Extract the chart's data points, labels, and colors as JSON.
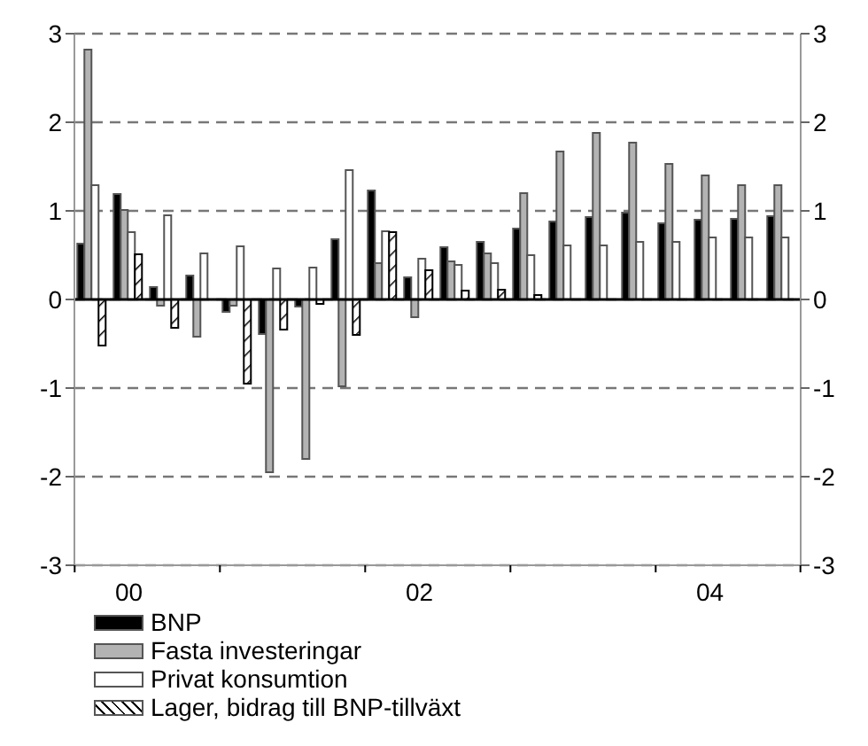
{
  "chart_data": {
    "type": "bar",
    "categories": [
      null,
      "00",
      null,
      null,
      null,
      null,
      null,
      null,
      null,
      "02",
      null,
      null,
      null,
      null,
      null,
      null,
      null,
      "04",
      null,
      null
    ],
    "series": [
      {
        "name": "BNP",
        "color": "#000000",
        "values": [
          0.63,
          1.19,
          0.14,
          0.27,
          -0.14,
          -0.39,
          -0.08,
          0.68,
          1.23,
          0.25,
          0.59,
          0.65,
          0.8,
          0.88,
          0.93,
          0.98,
          0.86,
          0.9,
          0.91,
          0.94
        ]
      },
      {
        "name": "Fasta investeringar",
        "color": "#b3b3b3",
        "values": [
          2.82,
          1.01,
          -0.07,
          -0.42,
          -0.07,
          -1.95,
          -1.8,
          -0.98,
          0.41,
          -0.2,
          0.43,
          0.52,
          1.2,
          1.67,
          1.88,
          1.77,
          1.53,
          1.4,
          1.29,
          1.29
        ]
      },
      {
        "name": "Privat konsumtion",
        "color": "#ffffff",
        "values": [
          1.29,
          0.76,
          0.95,
          0.52,
          0.6,
          0.35,
          0.36,
          1.46,
          0.77,
          0.46,
          0.39,
          0.41,
          0.5,
          0.61,
          0.61,
          0.65,
          0.65,
          0.7,
          0.7,
          0.7
        ]
      },
      {
        "name": "Lager, bidrag till BNP-tillväxt",
        "color": "#000000",
        "values": [
          -0.52,
          0.51,
          -0.32,
          null,
          -0.95,
          -0.34,
          -0.05,
          -0.4,
          0.76,
          0.33,
          0.1,
          0.11,
          0.05,
          null,
          null,
          null,
          null,
          null,
          null,
          null
        ]
      }
    ],
    "ylim": [
      -3,
      3
    ],
    "yticks": [
      -3,
      -2,
      -1,
      0,
      1,
      2,
      3
    ],
    "y2lim": [
      -3,
      3
    ],
    "y2ticks": [
      -3,
      -2,
      -1,
      0,
      1,
      2,
      3
    ],
    "grid": "y",
    "legend": "bottom"
  }
}
